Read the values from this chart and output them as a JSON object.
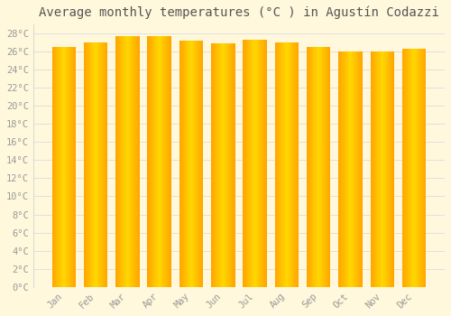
{
  "title": "Average monthly temperatures (°C ) in Agustín Codazzi",
  "months": [
    "Jan",
    "Feb",
    "Mar",
    "Apr",
    "May",
    "Jun",
    "Jul",
    "Aug",
    "Sep",
    "Oct",
    "Nov",
    "Dec"
  ],
  "values": [
    26.5,
    27.0,
    27.7,
    27.7,
    27.2,
    26.9,
    27.3,
    27.0,
    26.5,
    26.0,
    26.0,
    26.3
  ],
  "bar_color_center": "#FFD700",
  "bar_color_edge": "#FFA500",
  "ylim": [
    0,
    29
  ],
  "ytick_step": 2,
  "background_color": "#FFF8DC",
  "grid_color": "#E0E0E0",
  "title_fontsize": 10,
  "tick_fontsize": 7.5,
  "tick_color": "#999999"
}
